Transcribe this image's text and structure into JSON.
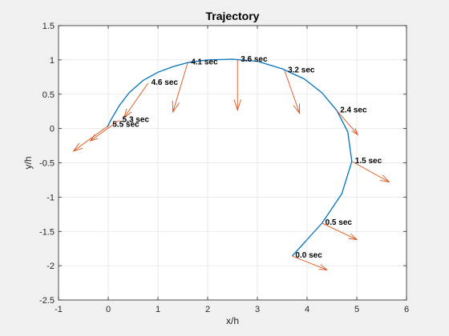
{
  "colors": {
    "figure_bg": "#f0f0f0",
    "axes_bg": "#ffffff",
    "grid": "#e3e3e3",
    "axis": "#262626",
    "trajectory": "#0072bd",
    "arrows": "#d95319"
  },
  "chart_data": {
    "type": "line",
    "title": "Trajectory",
    "xlabel": "x/h",
    "ylabel": "y/h",
    "xlim": [
      -1,
      6
    ],
    "ylim": [
      -2.5,
      1.5
    ],
    "grid": true,
    "box": true,
    "xticks": [
      -1,
      0,
      1,
      2,
      3,
      4,
      5,
      6
    ],
    "xtick_labels": [
      "-1",
      "0",
      "1",
      "2",
      "3",
      "4",
      "5",
      "6"
    ],
    "yticks": [
      -2.5,
      -2,
      -1.5,
      -1,
      -0.5,
      0,
      0.5,
      1,
      1.5
    ],
    "ytick_labels": [
      "-2.5",
      "-2",
      "-1.5",
      "-1",
      "-0.5",
      "0",
      "0.5",
      "1",
      "1.5"
    ],
    "series": [
      {
        "x": [
          3.7,
          4.0,
          4.3,
          4.7,
          4.9,
          4.82,
          4.6,
          4.3,
          3.95,
          3.5,
          3.0,
          2.5,
          2.0,
          1.6,
          1.3,
          1.0,
          0.7,
          0.42,
          0.22,
          0.05,
          -0.02
        ],
        "y": [
          -1.86,
          -1.62,
          -1.38,
          -0.95,
          -0.48,
          -0.05,
          0.26,
          0.52,
          0.72,
          0.87,
          0.98,
          1.01,
          1.0,
          0.96,
          0.9,
          0.82,
          0.7,
          0.52,
          0.33,
          0.12,
          0.02
        ]
      }
    ],
    "vectors": [
      {
        "label": "0.0 sec",
        "x": 3.7,
        "y": -1.86,
        "u": 0.7,
        "v": -0.2
      },
      {
        "label": "0.5 sec",
        "x": 4.3,
        "y": -1.38,
        "u": 0.7,
        "v": -0.24
      },
      {
        "label": "1.5 sec",
        "x": 4.9,
        "y": -0.48,
        "u": 0.75,
        "v": -0.3
      },
      {
        "label": "2.4 sec",
        "x": 4.6,
        "y": 0.26,
        "u": 0.42,
        "v": -0.35
      },
      {
        "label": "3.2 sec",
        "x": 3.55,
        "y": 0.84,
        "u": 0.3,
        "v": -0.62
      },
      {
        "label": "3.6 sec",
        "x": 2.6,
        "y": 1.0,
        "u": 0.0,
        "v": -0.73
      },
      {
        "label": "4.1 sec",
        "x": 1.6,
        "y": 0.96,
        "u": -0.3,
        "v": -0.72
      },
      {
        "label": "4.6 sec",
        "x": 0.8,
        "y": 0.66,
        "u": -0.48,
        "v": -0.5
      },
      {
        "label": "5.3 sec",
        "x": 0.22,
        "y": 0.12,
        "u": -0.58,
        "v": -0.3
      },
      {
        "label": "5.5 sec",
        "x": 0.02,
        "y": 0.05,
        "u": -0.72,
        "v": -0.38
      }
    ]
  }
}
